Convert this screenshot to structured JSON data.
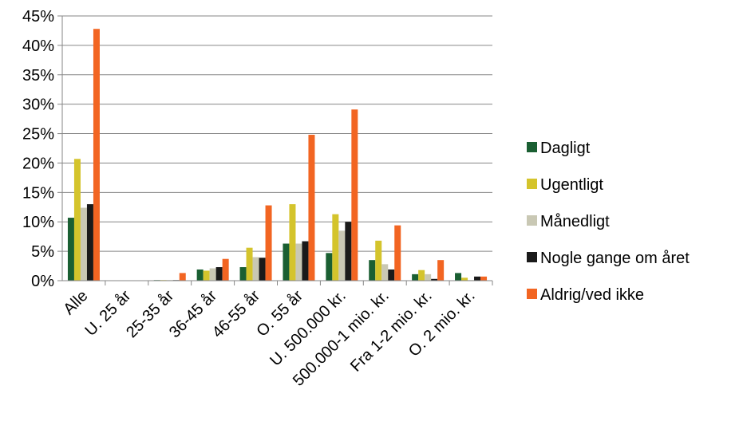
{
  "chart_data": {
    "type": "bar",
    "title": "",
    "xlabel": "",
    "ylabel": "",
    "ylim": [
      0,
      45
    ],
    "y_unit": "%",
    "y_ticks": [
      "0%",
      "5%",
      "10%",
      "15%",
      "20%",
      "25%",
      "30%",
      "35%",
      "40%",
      "45%"
    ],
    "grid": true,
    "legend_position": "right",
    "categories": [
      "Alle",
      "U. 25 år",
      "25-35 år",
      "36-45 år",
      "46-55 år",
      "O. 55 år",
      "U. 500.000 kr.",
      "500.000-1 mio. kr.",
      "Fra 1-2 mio. kr.",
      "O. 2 mio. kr."
    ],
    "series": [
      {
        "name": "Dagligt",
        "color": "#1a5f32",
        "values": [
          10.7,
          0,
          0.1,
          1.9,
          2.3,
          6.3,
          4.7,
          3.5,
          1.1,
          1.3
        ]
      },
      {
        "name": "Ugentligt",
        "color": "#d4c42c",
        "values": [
          20.7,
          0,
          0.1,
          1.7,
          5.6,
          13.0,
          11.3,
          6.8,
          1.8,
          0.5
        ]
      },
      {
        "name": "Månedligt",
        "color": "#c9c8b4",
        "values": [
          12.4,
          0,
          0.1,
          2.1,
          4.0,
          6.3,
          8.5,
          2.8,
          1.1,
          0.1
        ]
      },
      {
        "name": "Nogle gange om året",
        "color": "#1a1a1a",
        "values": [
          13.0,
          0,
          0.1,
          2.3,
          3.9,
          6.7,
          10.0,
          1.9,
          0.3,
          0.7
        ]
      },
      {
        "name": "Aldrig/ved ikke",
        "color": "#f26522",
        "values": [
          42.8,
          0,
          1.3,
          3.7,
          12.8,
          24.8,
          29.1,
          9.4,
          3.5,
          0.7
        ]
      }
    ]
  }
}
